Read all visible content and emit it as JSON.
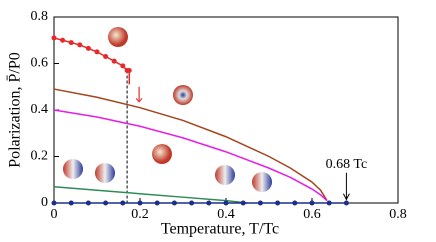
{
  "chart_data": {
    "type": "line",
    "xlabel": "Temperature, T/Tc",
    "ylabel": "Polarization, P̄/P0",
    "xlim": [
      0,
      0.8
    ],
    "ylim": [
      0,
      0.8
    ],
    "xticks": [
      0,
      0.2,
      0.4,
      0.6,
      0.8
    ],
    "yticks": [
      0,
      0.2,
      0.4,
      0.6,
      0.8
    ],
    "vline": 0.17,
    "annotation": {
      "text": "0.68 Tc",
      "x": 0.68
    },
    "series": [
      {
        "color": "#e8282a",
        "markers": true,
        "x": [
          0,
          0.02,
          0.04,
          0.06,
          0.08,
          0.1,
          0.12,
          0.14,
          0.16,
          0.17,
          0.175,
          0.175
        ],
        "values": [
          0.71,
          0.7,
          0.69,
          0.68,
          0.665,
          0.65,
          0.63,
          0.61,
          0.59,
          0.57,
          0.57,
          0.51
        ]
      },
      {
        "color": "#a5441c",
        "markers": false,
        "x": [
          0,
          0.1,
          0.2,
          0.3,
          0.4,
          0.5,
          0.55,
          0.6,
          0.62,
          0.635
        ],
        "values": [
          0.49,
          0.455,
          0.41,
          0.355,
          0.285,
          0.2,
          0.15,
          0.09,
          0.055,
          0.01
        ]
      },
      {
        "color": "#e81ce8",
        "markers": false,
        "x": [
          0,
          0.1,
          0.2,
          0.3,
          0.4,
          0.5,
          0.55,
          0.6,
          0.62,
          0.635
        ],
        "values": [
          0.4,
          0.37,
          0.33,
          0.28,
          0.22,
          0.15,
          0.11,
          0.06,
          0.035,
          0.01
        ]
      },
      {
        "color": "#2e8b57",
        "markers": false,
        "x": [
          0,
          0.1,
          0.2,
          0.3,
          0.4,
          0.45
        ],
        "values": [
          0.07,
          0.055,
          0.04,
          0.025,
          0.01,
          0
        ]
      },
      {
        "color": "#1c2e8c",
        "markers": true,
        "x": [
          0,
          0.04,
          0.08,
          0.12,
          0.16,
          0.2,
          0.24,
          0.28,
          0.32,
          0.36,
          0.4,
          0.44,
          0.48,
          0.52,
          0.56,
          0.6,
          0.64,
          0.68
        ],
        "values": [
          0,
          0,
          0,
          0,
          0,
          0,
          0,
          0,
          0,
          0,
          0,
          0,
          0,
          0,
          0,
          0,
          0,
          0
        ]
      }
    ]
  }
}
